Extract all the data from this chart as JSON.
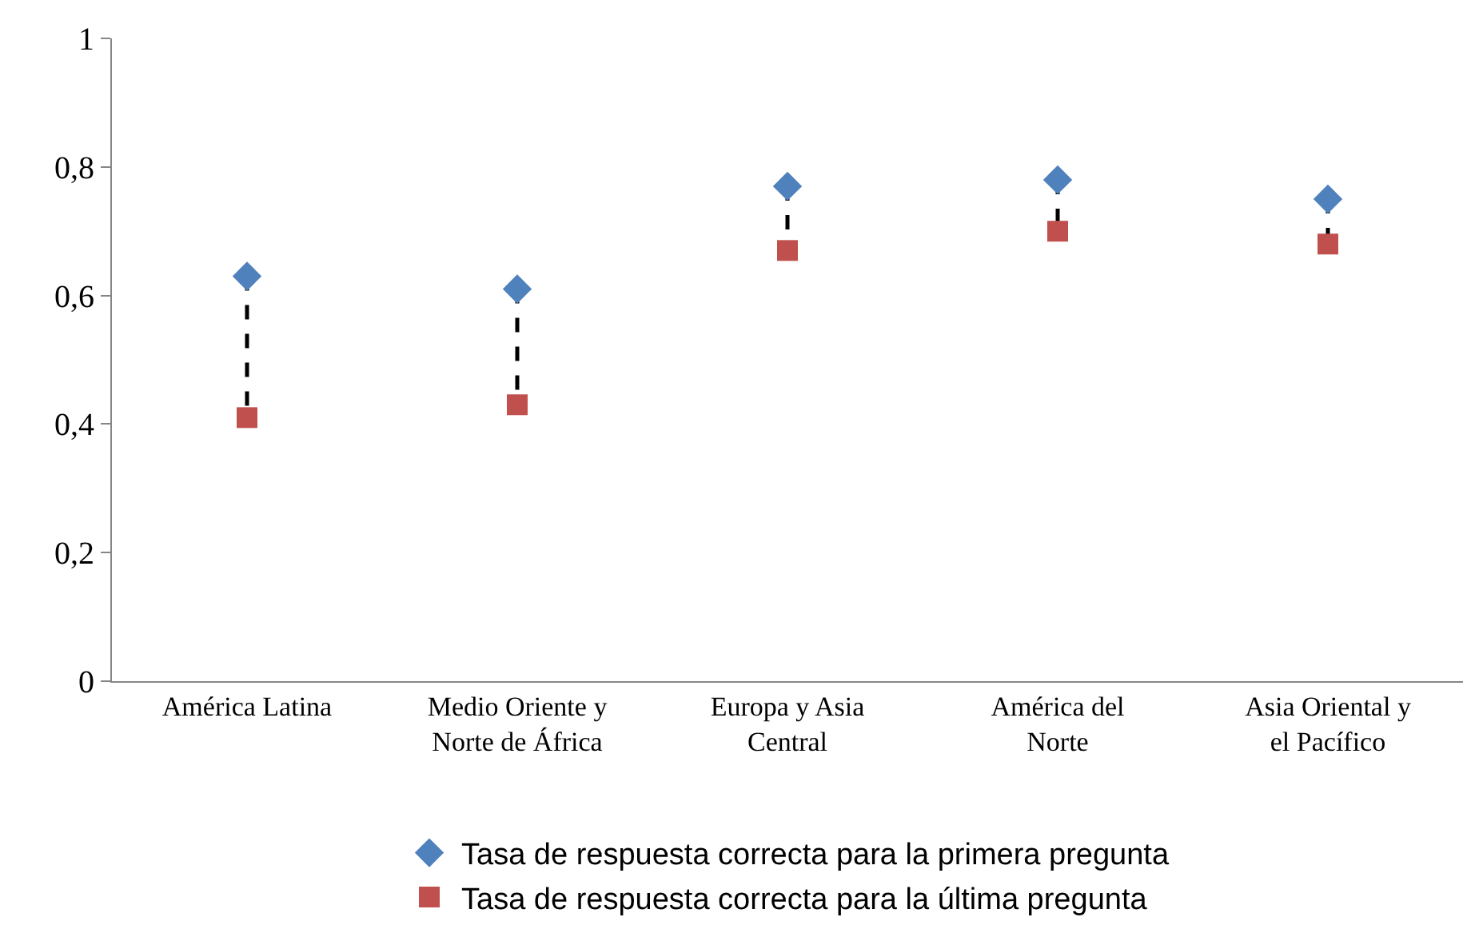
{
  "chart_data": {
    "type": "scatter",
    "categories": [
      "América Latina",
      "Medio Oriente y Norte de África",
      "Europa y Asia Central",
      "América del Norte",
      "Asia Oriental y el Pacífico"
    ],
    "series": [
      {
        "name": "Tasa de respuesta correcta para la primera pregunta",
        "color": "#4f81bd",
        "marker": "diamond",
        "values": [
          0.63,
          0.61,
          0.77,
          0.78,
          0.75
        ]
      },
      {
        "name": "Tasa de respuesta correcta para la última pregunta",
        "color": "#c0504d",
        "marker": "square",
        "values": [
          0.41,
          0.43,
          0.67,
          0.7,
          0.68
        ]
      }
    ],
    "ylim": [
      0,
      1
    ],
    "yticks": [
      0,
      {
        "value": 0.2,
        "label": "0,2"
      },
      {
        "value": 0.4,
        "label": "0,4"
      },
      {
        "value": 0.6,
        "label": "0,6"
      },
      {
        "value": 0.8,
        "label": "0,8"
      },
      1
    ],
    "grid": false,
    "legend": "bottom"
  }
}
